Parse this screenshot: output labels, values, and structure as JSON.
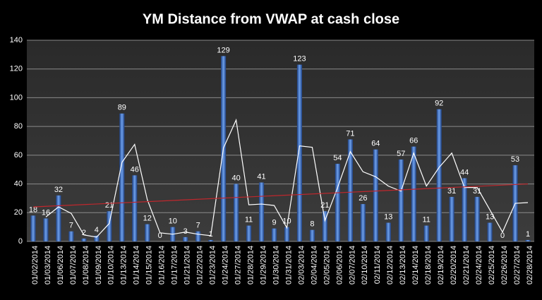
{
  "chart_data": {
    "type": "bar",
    "title": "YM Distance from VWAP at cash close",
    "categories": [
      "01/02/2014",
      "01/03/2014",
      "01/06/2014",
      "01/07/2014",
      "01/08/2014",
      "01/09/2014",
      "01/10/2014",
      "01/13/2014",
      "01/14/2014",
      "01/15/2014",
      "01/16/2014",
      "01/17/2014",
      "01/21/2014",
      "01/22/2014",
      "01/23/2014",
      "01/24/2014",
      "01/27/2014",
      "01/28/2014",
      "01/29/2014",
      "01/30/2014",
      "01/31/2014",
      "02/03/2014",
      "02/04/2014",
      "02/05/2014",
      "02/06/2014",
      "02/07/2014",
      "02/10/2014",
      "02/11/2014",
      "02/12/2014",
      "02/13/2014",
      "02/14/2014",
      "02/18/2014",
      "02/19/2014",
      "02/20/2014",
      "02/21/2014",
      "02/24/2014",
      "02/25/2014",
      "02/26/2014",
      "02/27/2014",
      "02/28/2014"
    ],
    "values": [
      18,
      16,
      32,
      7,
      2,
      4,
      21,
      89,
      46,
      12,
      0,
      10,
      3,
      7,
      1,
      129,
      40,
      11,
      41,
      9,
      10,
      123,
      8,
      21,
      54,
      71,
      26,
      64,
      13,
      57,
      66,
      11,
      92,
      31,
      44,
      31,
      13,
      0,
      53,
      1
    ],
    "color": "#3a6fc4",
    "moving_average": {
      "color": "#ffffff",
      "values": [
        null,
        17,
        24,
        19.5,
        4.5,
        3,
        12.5,
        55,
        67.5,
        29,
        6,
        5,
        6.5,
        5,
        4,
        65,
        84.5,
        25.5,
        26,
        25,
        9.5,
        66.5,
        65.5,
        14.5,
        37.5,
        62.5,
        48.5,
        45,
        38.5,
        35,
        61.5,
        38.5,
        51.5,
        61.5,
        37.5,
        37.5,
        22,
        6.5,
        26.5,
        27
      ]
    },
    "trendline": {
      "color": "#c0272d",
      "values": [
        24,
        40
      ]
    },
    "ylim": [
      0,
      140
    ],
    "yticks": [
      0,
      20,
      40,
      60,
      80,
      100,
      120,
      140
    ],
    "grid": true
  }
}
